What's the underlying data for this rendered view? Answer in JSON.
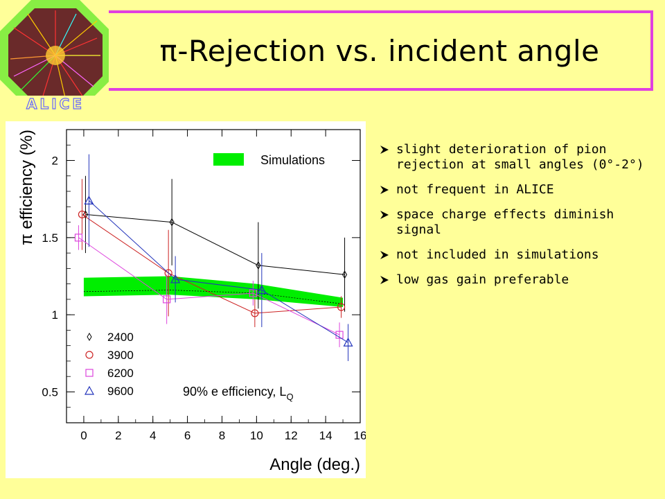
{
  "slide": {
    "title": "π-Rejection vs. incident angle",
    "logo_text": "ALICE",
    "bullets": [
      "slight deterioration of pion rejection at small angles (0°-2°)",
      "not frequent in ALICE",
      "space charge effects diminish signal",
      "not included in simulations",
      "low gas gain preferable"
    ]
  },
  "chart_data": {
    "type": "scatter",
    "xlabel": "Angle (deg.)",
    "ylabel": "π efficiency (%)",
    "xlim": [
      -1,
      16
    ],
    "ylim": [
      0.3,
      2.2
    ],
    "x_ticks": [
      "0",
      "2",
      "4",
      "6",
      "8",
      "10",
      "12",
      "14",
      "16"
    ],
    "y_ticks": [
      "0.5",
      "1",
      "1.5",
      "2"
    ],
    "annotation": "90% e efficiency, L",
    "annotation_sub": "Q",
    "simulation_band": {
      "name": "Simulations",
      "color": "#00ee00",
      "x": [
        0,
        5,
        10,
        15
      ],
      "lower": [
        1.12,
        1.13,
        1.1,
        1.05
      ],
      "upper": [
        1.24,
        1.25,
        1.2,
        1.11
      ],
      "center": [
        1.15,
        1.16,
        1.14,
        1.07
      ]
    },
    "series": [
      {
        "name": "2400",
        "marker": "diamond",
        "color": "#000000",
        "x": [
          0.1,
          5.1,
          10.1,
          15.1
        ],
        "y": [
          1.65,
          1.6,
          1.32,
          1.26
        ],
        "err": [
          0.25,
          0.28,
          0.28,
          0.24
        ]
      },
      {
        "name": "3900",
        "marker": "circle",
        "color": "#cc2222",
        "x": [
          -0.1,
          4.9,
          9.9,
          14.9
        ],
        "y": [
          1.65,
          1.27,
          1.01,
          1.05
        ],
        "err": [
          0.23,
          0.28,
          0.09,
          0.07
        ]
      },
      {
        "name": "6200",
        "marker": "square",
        "color": "#dd44dd",
        "x": [
          -0.3,
          4.8,
          9.8,
          14.8
        ],
        "y": [
          1.5,
          1.1,
          1.14,
          0.87
        ],
        "err": [
          0.08,
          0.16,
          0.08,
          0.08
        ]
      },
      {
        "name": "9600",
        "marker": "triangle",
        "color": "#2233bb",
        "x": [
          0.3,
          5.3,
          10.3,
          15.3
        ],
        "y": [
          1.74,
          1.23,
          1.16,
          0.82
        ],
        "err": [
          0.3,
          0.15,
          0.24,
          0.12
        ]
      }
    ]
  }
}
